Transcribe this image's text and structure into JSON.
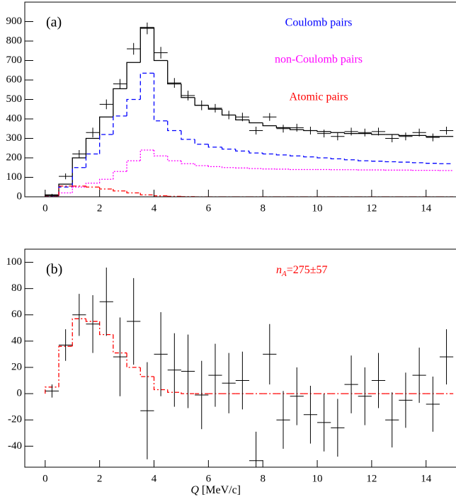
{
  "chart_data": [
    {
      "type": "histogram",
      "panel_label": "(a)",
      "bins": [
        0,
        0.5,
        1,
        1.5,
        2,
        2.5,
        3,
        3.5,
        4,
        4.5,
        5,
        5.5,
        6,
        6.5,
        7,
        7.5,
        8,
        8.5,
        9,
        9.5,
        10,
        10.5,
        11,
        11.5,
        12,
        12.5,
        13,
        13.5,
        14,
        14.5,
        15
      ],
      "xlim": [
        -0.75,
        15.1
      ],
      "xticks": [
        0,
        2,
        4,
        6,
        8,
        10,
        12,
        14
      ],
      "ylim": [
        0,
        1000
      ],
      "yticks": [
        0,
        100,
        200,
        300,
        400,
        500,
        600,
        700,
        800,
        900
      ],
      "points": {
        "color": "#000000",
        "values": [
          5,
          105,
          220,
          330,
          475,
          580,
          760,
          865,
          740,
          585,
          520,
          470,
          455,
          420,
          410,
          340,
          410,
          350,
          355,
          340,
          325,
          310,
          335,
          330,
          335,
          300,
          310,
          330,
          305,
          340
        ],
        "errors": [
          10,
          15,
          20,
          25,
          25,
          25,
          30,
          30,
          30,
          25,
          25,
          25,
          22,
          22,
          22,
          20,
          20,
          20,
          20,
          20,
          20,
          20,
          20,
          20,
          20,
          20,
          20,
          20,
          20,
          20
        ]
      },
      "series": [
        {
          "color": "#000000",
          "dash": "none",
          "values": [
            10,
            65,
            200,
            300,
            410,
            555,
            690,
            870,
            700,
            580,
            510,
            470,
            450,
            420,
            395,
            380,
            365,
            355,
            345,
            340,
            335,
            330,
            325,
            325,
            320,
            320,
            315,
            315,
            310,
            310
          ]
        },
        {
          "name": "Coulomb pairs",
          "color": "#0000ff",
          "dash": "6 4",
          "values": [
            5,
            50,
            150,
            220,
            320,
            415,
            500,
            635,
            390,
            340,
            295,
            270,
            255,
            245,
            235,
            225,
            220,
            215,
            210,
            205,
            200,
            195,
            190,
            185,
            183,
            180,
            178,
            175,
            172,
            170
          ]
        },
        {
          "name": "non-Coulomb pairs",
          "color": "#ff00ff",
          "dash": "2 2",
          "values": [
            3,
            20,
            50,
            70,
            90,
            130,
            185,
            240,
            210,
            185,
            170,
            160,
            155,
            150,
            148,
            145,
            143,
            142,
            140,
            140,
            140,
            139,
            139,
            138,
            138,
            137,
            137,
            136,
            136,
            135
          ]
        },
        {
          "name": "Atomic pairs",
          "color": "#ff0000",
          "dash": "6 3 2 3",
          "values": [
            5,
            55,
            55,
            50,
            40,
            30,
            20,
            10,
            5,
            2,
            1,
            0,
            0,
            0,
            0,
            0,
            0,
            0,
            0,
            0,
            0,
            0,
            0,
            0,
            0,
            0,
            0,
            0,
            0,
            0
          ]
        }
      ]
    },
    {
      "type": "histogram",
      "panel_label": "(b)",
      "bins": [
        0,
        0.5,
        1,
        1.5,
        2,
        2.5,
        3,
        3.5,
        4,
        4.5,
        5,
        5.5,
        6,
        6.5,
        7,
        7.5,
        8,
        8.5,
        9,
        9.5,
        10,
        10.5,
        11,
        11.5,
        12,
        12.5,
        13,
        13.5,
        14,
        14.5,
        15
      ],
      "xlim": [
        -0.75,
        15.1
      ],
      "xticks": [
        0,
        2,
        4,
        6,
        8,
        10,
        12,
        14
      ],
      "ylim": [
        -56,
        110
      ],
      "yticks": [
        -40,
        -20,
        0,
        20,
        40,
        60,
        80,
        100
      ],
      "x_label": [
        "Q",
        "[MeV/c]"
      ],
      "annotation": {
        "parts": [
          "n",
          "A",
          "=275±57"
        ],
        "color": "#ff0000"
      },
      "points": {
        "color": "#000000",
        "values": [
          2,
          37,
          60,
          53,
          70,
          28,
          55,
          -13,
          30,
          18,
          17,
          -1,
          14,
          8,
          10,
          -51,
          30,
          -20,
          -2,
          -16,
          -22,
          -26,
          7,
          -2,
          10,
          -20,
          -5,
          14,
          -8,
          28
        ],
        "errors": [
          5,
          12,
          16,
          22,
          26,
          30,
          33,
          37,
          32,
          28,
          28,
          26,
          24,
          23,
          22,
          22,
          23,
          22,
          22,
          22,
          22,
          22,
          22,
          22,
          21,
          21,
          21,
          21,
          21,
          21
        ]
      },
      "series": [
        {
          "color": "#ff0000",
          "dash": "6 3 2 3",
          "values": [
            5,
            36,
            57,
            55,
            45,
            31,
            20,
            13,
            3,
            1,
            0,
            0,
            0,
            0,
            0,
            0,
            0,
            0,
            0,
            0,
            0,
            0,
            0,
            0,
            0,
            0,
            0,
            0,
            0,
            0
          ]
        }
      ]
    }
  ]
}
